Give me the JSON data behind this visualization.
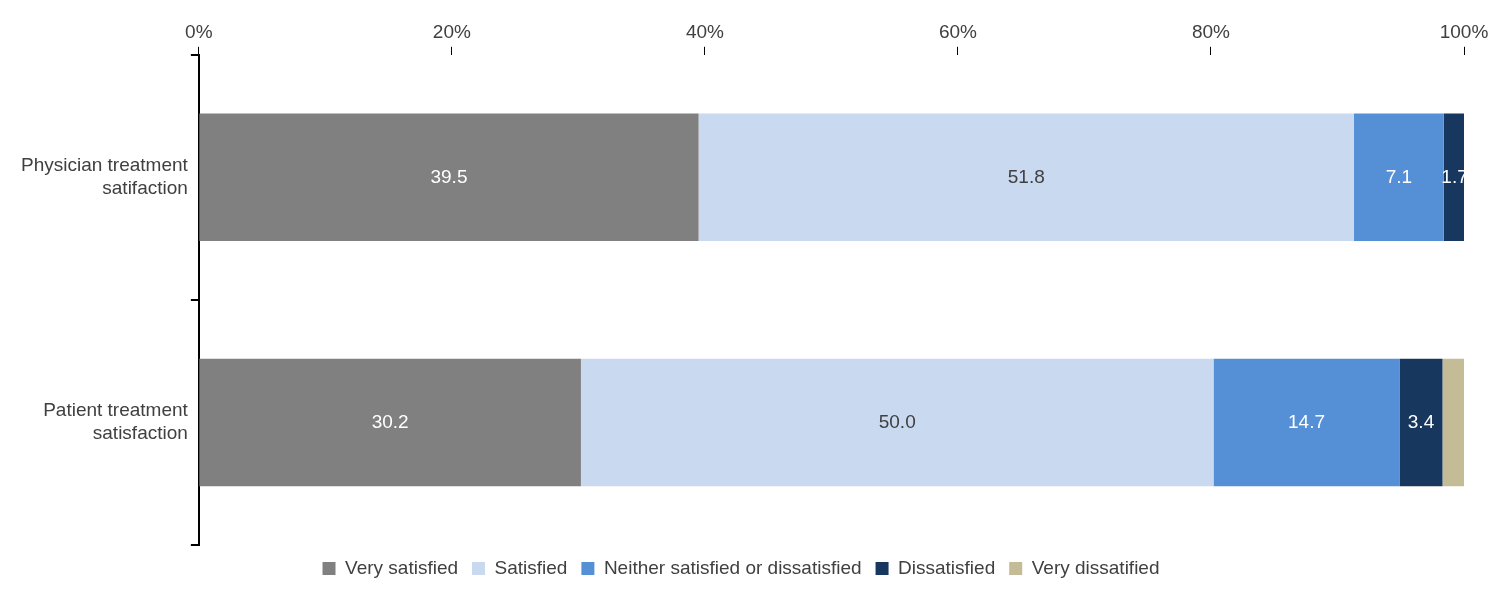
{
  "chart_data": {
    "type": "bar",
    "orientation": "horizontal",
    "stacked": true,
    "categories": [
      "Physician treatment satifaction",
      "Patient treatment satisfaction"
    ],
    "series": [
      {
        "name": "Very satisfied",
        "color": "#808080",
        "values": [
          39.5,
          30.2
        ],
        "value_labels": [
          "39.5",
          "30.2"
        ]
      },
      {
        "name": "Satisfied",
        "color": "#c9d9f0",
        "values": [
          51.8,
          50.0
        ],
        "value_labels": [
          "51.8",
          "50.0"
        ]
      },
      {
        "name": "Neither satisfied or dissatisfied",
        "color": "#5590d6",
        "values": [
          7.1,
          14.7
        ],
        "value_labels": [
          "7.1",
          "14.7"
        ]
      },
      {
        "name": "Dissatisfied",
        "color": "#17375e",
        "values": [
          1.7,
          3.4
        ],
        "value_labels": [
          "1.7",
          "3.4"
        ]
      },
      {
        "name": "Very dissatified",
        "color": "#c4bc96",
        "values": [
          null,
          1.7
        ],
        "value_labels": [
          null,
          null
        ]
      }
    ],
    "xlim": [
      0,
      100
    ],
    "xticks": [
      {
        "value": 0,
        "label": "0%"
      },
      {
        "value": 20,
        "label": "20%"
      },
      {
        "value": 40,
        "label": "40%"
      },
      {
        "value": 60,
        "label": "60%"
      },
      {
        "value": 80,
        "label": "80%"
      },
      {
        "value": 100,
        "label": "100%"
      }
    ],
    "grid": false,
    "legend": "bottom"
  }
}
